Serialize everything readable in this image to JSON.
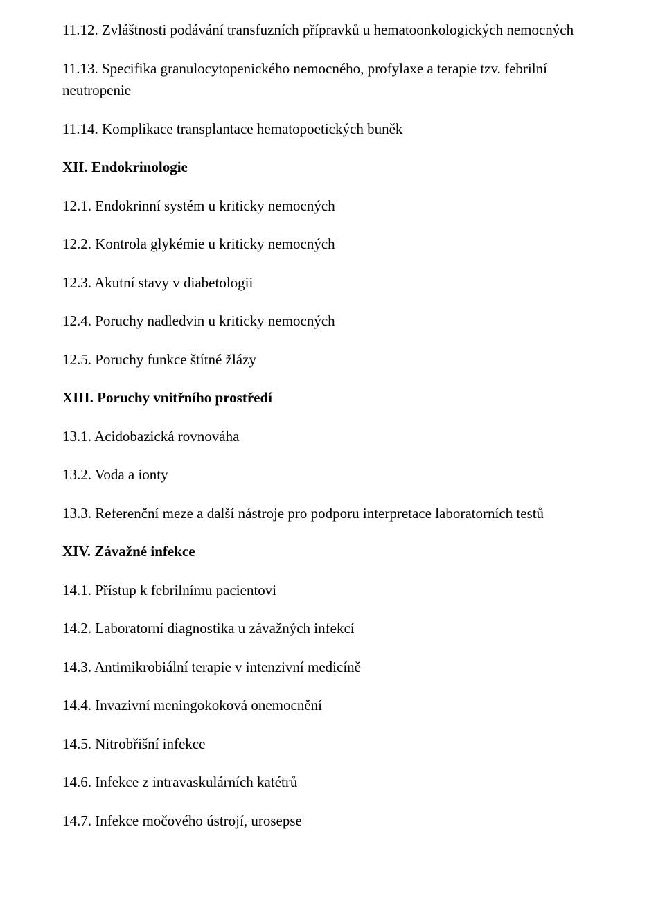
{
  "items": [
    {
      "text": "11.12. Zvláštnosti podávání transfuzních přípravků u hematoonkologických nemocných",
      "bold": false
    },
    {
      "text": "11.13. Specifika granulocytopenického nemocného, profylaxe a terapie tzv. febrilní neutropenie",
      "bold": false
    },
    {
      "text": "11.14. Komplikace transplantace hematopoetických buněk",
      "bold": false
    },
    {
      "text": "XII. Endokrinologie",
      "bold": true
    },
    {
      "text": "12.1. Endokrinní systém u kriticky nemocných",
      "bold": false
    },
    {
      "text": "12.2. Kontrola glykémie u kriticky nemocných",
      "bold": false
    },
    {
      "text": "12.3. Akutní stavy v diabetologii",
      "bold": false
    },
    {
      "text": "12.4. Poruchy nadledvin u kriticky nemocných",
      "bold": false
    },
    {
      "text": "12.5. Poruchy funkce štítné žlázy",
      "bold": false
    },
    {
      "text": "XIII. Poruchy vnitřního prostředí",
      "bold": true
    },
    {
      "text": "13.1. Acidobazická rovnováha",
      "bold": false
    },
    {
      "text": "13.2. Voda a ionty",
      "bold": false
    },
    {
      "text": "13.3. Referenční meze a další nástroje pro podporu interpretace laboratorních testů",
      "bold": false
    },
    {
      "text": "XIV. Závažné infekce",
      "bold": true
    },
    {
      "text": "14.1. Přístup k febrilnímu pacientovi",
      "bold": false
    },
    {
      "text": "14.2. Laboratorní diagnostika u závažných infekcí",
      "bold": false
    },
    {
      "text": "14.3. Antimikrobiální terapie v intenzivní medicíně",
      "bold": false
    },
    {
      "text": "14.4. Invazivní meningokoková onemocnění",
      "bold": false
    },
    {
      "text": "14.5. Nitrobřišní infekce",
      "bold": false
    },
    {
      "text": "14.6. Infekce z intravaskulárních katétrů",
      "bold": false
    },
    {
      "text": "14.7. Infekce močového ústrojí, urosepse",
      "bold": false
    }
  ]
}
